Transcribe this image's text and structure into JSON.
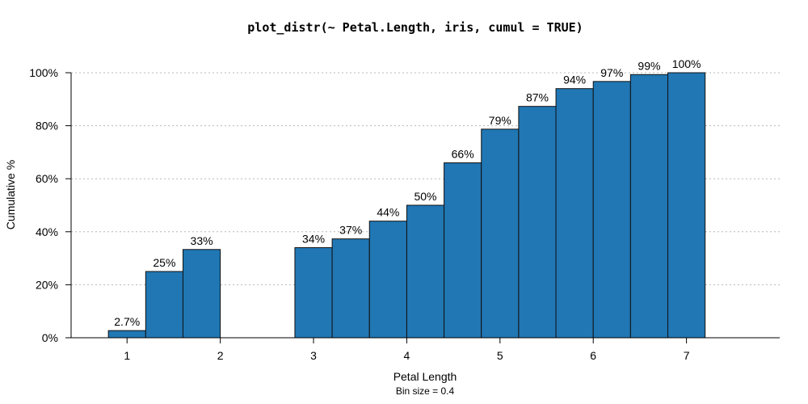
{
  "chart_data": {
    "type": "bar",
    "title": "plot_distr(~ Petal.Length, iris, cumul = TRUE)",
    "xlabel": "Petal Length",
    "ylabel": "Cumulative %",
    "note": "Bin size = 0.4",
    "bin_size": 0.4,
    "bins": [
      {
        "x0": 0.8,
        "x1": 1.2,
        "value": 2.7,
        "label": "2.7%"
      },
      {
        "x0": 1.2,
        "x1": 1.6,
        "value": 25,
        "label": "25%"
      },
      {
        "x0": 1.6,
        "x1": 2.0,
        "value": 33.3,
        "label": "33%"
      },
      {
        "x0": 2.8,
        "x1": 3.2,
        "value": 34,
        "label": "34%"
      },
      {
        "x0": 3.2,
        "x1": 3.6,
        "value": 37.3,
        "label": "37%"
      },
      {
        "x0": 3.6,
        "x1": 4.0,
        "value": 44,
        "label": "44%"
      },
      {
        "x0": 4.0,
        "x1": 4.4,
        "value": 50,
        "label": "50%"
      },
      {
        "x0": 4.4,
        "x1": 4.8,
        "value": 66,
        "label": "66%"
      },
      {
        "x0": 4.8,
        "x1": 5.2,
        "value": 78.7,
        "label": "79%"
      },
      {
        "x0": 5.2,
        "x1": 5.6,
        "value": 87.3,
        "label": "87%"
      },
      {
        "x0": 5.6,
        "x1": 6.0,
        "value": 94,
        "label": "94%"
      },
      {
        "x0": 6.0,
        "x1": 6.4,
        "value": 96.7,
        "label": "97%"
      },
      {
        "x0": 6.4,
        "x1": 6.8,
        "value": 99.3,
        "label": "99%"
      },
      {
        "x0": 6.8,
        "x1": 7.2,
        "value": 100,
        "label": "100%"
      }
    ],
    "xlim": [
      0.4,
      8.0
    ],
    "ylim": [
      0,
      100
    ],
    "x_ticks": [
      1,
      2,
      3,
      4,
      5,
      6,
      7
    ],
    "y_ticks": [
      0,
      20,
      40,
      60,
      80,
      100
    ],
    "y_tick_labels": [
      "0%",
      "20%",
      "40%",
      "60%",
      "80%",
      "100%"
    ],
    "grid": true,
    "bar_color": "#2077B4"
  }
}
